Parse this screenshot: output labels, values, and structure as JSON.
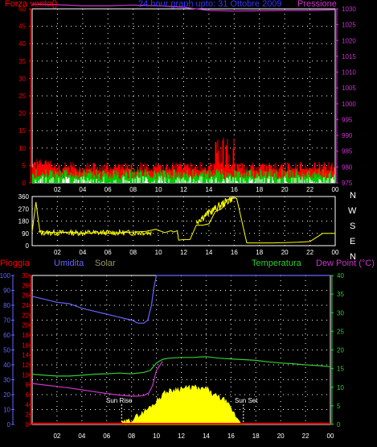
{
  "header": {
    "left": "Forza vento()",
    "center": "24 hour graph upto: 31 Ottobre 2009",
    "right": "Pressione"
  },
  "lower_header": {
    "pioggia": "Pioggia",
    "umidita": "Umidita",
    "solar": "Solar",
    "temperatura": "Temperatura",
    "dewpoint": "Dew Point (°C)"
  },
  "compass": [
    "N",
    "W",
    "S",
    "E",
    "N"
  ],
  "sun": {
    "rise": "Sun Rise",
    "set": "Sun Set"
  },
  "colors": {
    "pressure": "#cc33cc",
    "wind_gust": "#ff0000",
    "wind_avg": "#00cc00",
    "wind_light": "#ffffff",
    "direction": "#ffff00",
    "humidity": "#6666ff",
    "rain": "#ff0000",
    "solar": "#ffff00",
    "temperature": "#33cc33",
    "dewpoint": "#cc33cc",
    "grid": "#ffffff"
  },
  "chart_data": [
    {
      "type": "line",
      "name": "wind-pressure",
      "x_ticks": [
        "02",
        "04",
        "06",
        "08",
        "10",
        "12",
        "14",
        "16",
        "18",
        "20",
        "22",
        "00"
      ],
      "y_left_ticks": [
        "0",
        "5",
        "10",
        "15",
        "20",
        "25",
        "30",
        "35",
        "40",
        "45",
        "50"
      ],
      "y_right_ticks": [
        "975",
        "980",
        "985",
        "990",
        "995",
        "1000",
        "1005",
        "1010",
        "1015",
        "1020",
        "1025",
        "1030"
      ],
      "ylim_left": [
        0,
        50
      ],
      "ylim_right": [
        975,
        1030
      ],
      "series": [
        {
          "name": "Pressione",
          "axis": "right",
          "x": [
            0,
            2,
            4,
            6,
            8,
            10,
            12,
            13,
            14,
            16,
            18,
            20,
            22,
            24
          ],
          "y": [
            1031.5,
            1031.3,
            1031.0,
            1031.0,
            1031.2,
            1031.0,
            1030.5,
            1030.0,
            1029.5,
            1029.3,
            1029.4,
            1029.5,
            1029.5,
            1029.7
          ]
        }
      ]
    },
    {
      "type": "line",
      "name": "wind-direction",
      "x_ticks": [
        "02",
        "04",
        "06",
        "08",
        "10",
        "12",
        "14",
        "16",
        "18",
        "20",
        "22",
        "00"
      ],
      "y_ticks": [
        "0",
        "90",
        "180",
        "270",
        "360"
      ],
      "ylim": [
        0,
        360
      ],
      "series": [
        {
          "name": "direction",
          "x": [
            0,
            0.3,
            0.6,
            1,
            2,
            3,
            4,
            5,
            6,
            7,
            8,
            9,
            9.8,
            10.5,
            11,
            11.2,
            11.5,
            11.6,
            12,
            12.5,
            13,
            13.5,
            14,
            14.5,
            15,
            15.5,
            16.1,
            16.2,
            17,
            18,
            19,
            20,
            21,
            22,
            23,
            24
          ],
          "y": [
            100,
            320,
            110,
            100,
            95,
            100,
            90,
            95,
            90,
            95,
            100,
            105,
            120,
            95,
            110,
            100,
            110,
            40,
            45,
            45,
            150,
            150,
            160,
            250,
            270,
            340,
            350,
            345,
            20,
            20,
            20,
            22,
            25,
            30,
            90,
            90
          ]
        }
      ]
    },
    {
      "type": "line",
      "name": "rain-humidity-solar-temperature",
      "x_ticks": [
        "02",
        "04",
        "06",
        "08",
        "10",
        "12",
        "14",
        "16",
        "18",
        "20",
        "22",
        "00"
      ],
      "y_humidity_ticks": [
        "0",
        "10",
        "20",
        "30",
        "40",
        "50",
        "60",
        "70",
        "80",
        "90",
        "100"
      ],
      "y_rain_ticks": [
        "0",
        "2",
        "4",
        "6",
        "8",
        "10",
        "12",
        "14",
        "16",
        "18",
        "20",
        "22",
        "24",
        "26",
        "28",
        "30"
      ],
      "y_temperature_ticks": [
        "0",
        "5",
        "10",
        "15",
        "20",
        "25",
        "30",
        "35",
        "40"
      ],
      "ylim_humidity": [
        0,
        100
      ],
      "ylim_temperature": [
        0,
        40
      ],
      "series": [
        {
          "name": "Umidita",
          "axis": "humidity",
          "x": [
            0,
            0.5,
            1,
            2,
            3,
            4,
            5,
            6,
            7,
            8,
            8.5,
            9,
            9.3,
            9.6,
            9.8,
            10,
            10.2,
            24
          ],
          "y": [
            86,
            85,
            84,
            82,
            81,
            78,
            76,
            74,
            72,
            70,
            68,
            68,
            70,
            80,
            92,
            100,
            100,
            100
          ]
        },
        {
          "name": "Temperatura",
          "axis": "temperature",
          "x": [
            0,
            1,
            2,
            3,
            4,
            5,
            6,
            7,
            8,
            9,
            9.5,
            10,
            10.5,
            11,
            12,
            13,
            14,
            15,
            16,
            17,
            18,
            19,
            20,
            21,
            22,
            23,
            24
          ],
          "y": [
            13.5,
            13.2,
            13.0,
            13.0,
            13.2,
            13.5,
            13.6,
            13.8,
            13.6,
            14.0,
            14.5,
            16.5,
            17.5,
            17.8,
            18.0,
            18.0,
            18.2,
            17.8,
            17.6,
            17.4,
            17.2,
            16.8,
            16.5,
            16.3,
            16.0,
            15.8,
            15.5
          ]
        },
        {
          "name": "Dew Point",
          "axis": "temperature",
          "x": [
            0,
            1,
            2,
            3,
            4,
            5,
            6,
            7,
            8,
            8.5,
            9,
            9.4,
            9.7,
            10,
            10.5
          ],
          "y": [
            11.0,
            10.6,
            10.2,
            9.8,
            9.3,
            8.8,
            8.3,
            7.9,
            7.6,
            7.6,
            7.8,
            8.5,
            10.5,
            14.5,
            17.0
          ]
        },
        {
          "name": "Solar",
          "axis": "humidity",
          "x": [
            7.2,
            8,
            9,
            10,
            10.5,
            11,
            11.5,
            12,
            12.5,
            13,
            13.5,
            14,
            14.5,
            15,
            15.5,
            16,
            16.5,
            17
          ],
          "y": [
            0,
            3,
            8,
            15,
            20,
            22,
            23,
            24,
            24,
            25,
            23,
            24,
            20,
            18,
            16,
            10,
            4,
            0
          ]
        }
      ]
    }
  ]
}
